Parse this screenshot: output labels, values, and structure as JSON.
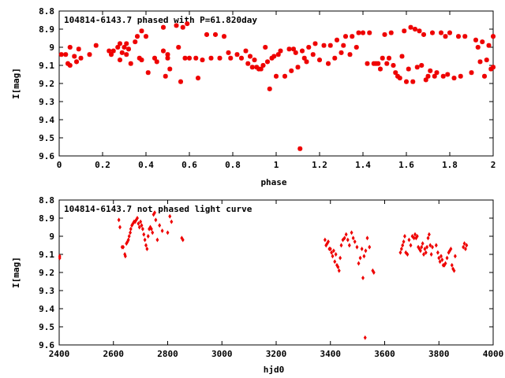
{
  "chart_data": [
    {
      "type": "scatter",
      "title": "104814-6143.7 phased with P=61.820day",
      "xlabel": "phase",
      "ylabel": "I[mag]",
      "xlim": [
        0,
        2
      ],
      "ylim": [
        9.6,
        8.8
      ],
      "y_inverted": true,
      "xticks": [
        "0",
        "0.2",
        "0.4",
        "0.6",
        "0.8",
        "1",
        "1.2",
        "1.4",
        "1.6",
        "1.8",
        "2"
      ],
      "yticks": [
        "8.8",
        "8.9",
        "9",
        "9.1",
        "9.2",
        "9.3",
        "9.4",
        "9.5",
        "9.6"
      ],
      "marker": "star",
      "color": "#ee0000",
      "points": [
        [
          0.01,
          9.04
        ],
        [
          0.03,
          9.04
        ],
        [
          0.04,
          9.09
        ],
        [
          0.05,
          9.1
        ],
        [
          0.05,
          9.0
        ],
        [
          0.07,
          9.05
        ],
        [
          0.08,
          9.08
        ],
        [
          0.09,
          9.01
        ],
        [
          0.1,
          9.06
        ],
        [
          0.14,
          9.04
        ],
        [
          0.17,
          8.99
        ],
        [
          0.23,
          9.02
        ],
        [
          0.24,
          9.04
        ],
        [
          0.25,
          9.02
        ],
        [
          0.27,
          9.0
        ],
        [
          0.28,
          8.98
        ],
        [
          0.28,
          9.07
        ],
        [
          0.29,
          9.03
        ],
        [
          0.3,
          9.0
        ],
        [
          0.31,
          9.04
        ],
        [
          0.31,
          8.98
        ],
        [
          0.32,
          9.01
        ],
        [
          0.33,
          9.09
        ],
        [
          0.35,
          8.97
        ],
        [
          0.36,
          8.94
        ],
        [
          0.37,
          9.06
        ],
        [
          0.38,
          8.91
        ],
        [
          0.38,
          9.07
        ],
        [
          0.4,
          8.94
        ],
        [
          0.41,
          9.14
        ],
        [
          0.44,
          9.06
        ],
        [
          0.45,
          9.08
        ],
        [
          0.48,
          9.02
        ],
        [
          0.48,
          8.89
        ],
        [
          0.49,
          9.16
        ],
        [
          0.5,
          9.04
        ],
        [
          0.5,
          9.06
        ],
        [
          0.51,
          9.12
        ],
        [
          0.54,
          8.88
        ],
        [
          0.55,
          9.0
        ],
        [
          0.56,
          9.19
        ],
        [
          0.57,
          8.89
        ],
        [
          0.58,
          9.06
        ],
        [
          0.59,
          8.87
        ],
        [
          0.6,
          9.06
        ],
        [
          0.63,
          9.06
        ],
        [
          0.64,
          9.17
        ],
        [
          0.66,
          9.07
        ],
        [
          0.68,
          8.93
        ],
        [
          0.7,
          9.06
        ],
        [
          0.72,
          8.93
        ],
        [
          0.74,
          9.06
        ],
        [
          0.76,
          8.94
        ],
        [
          0.78,
          9.03
        ],
        [
          0.79,
          9.06
        ],
        [
          0.82,
          9.04
        ],
        [
          0.84,
          9.06
        ],
        [
          0.86,
          9.02
        ],
        [
          0.87,
          9.09
        ],
        [
          0.88,
          9.05
        ],
        [
          0.89,
          9.11
        ],
        [
          0.9,
          9.07
        ],
        [
          0.91,
          9.11
        ],
        [
          0.92,
          9.12
        ],
        [
          0.93,
          9.12
        ],
        [
          0.94,
          9.1
        ],
        [
          0.95,
          9.0
        ],
        [
          0.96,
          9.08
        ],
        [
          0.97,
          9.23
        ],
        [
          0.98,
          9.06
        ],
        [
          0.99,
          9.05
        ],
        [
          1.0,
          9.16
        ],
        [
          1.01,
          9.04
        ],
        [
          1.02,
          9.02
        ],
        [
          1.04,
          9.16
        ],
        [
          1.06,
          9.01
        ],
        [
          1.07,
          9.13
        ],
        [
          1.08,
          9.01
        ],
        [
          1.09,
          9.03
        ],
        [
          1.1,
          9.11
        ],
        [
          1.11,
          9.56
        ],
        [
          1.12,
          9.02
        ],
        [
          1.13,
          9.06
        ],
        [
          1.14,
          9.08
        ],
        [
          1.15,
          9.0
        ],
        [
          1.17,
          9.04
        ],
        [
          1.18,
          8.98
        ],
        [
          1.2,
          9.07
        ],
        [
          1.22,
          8.99
        ],
        [
          1.24,
          9.09
        ],
        [
          1.25,
          8.99
        ],
        [
          1.27,
          9.06
        ],
        [
          1.28,
          8.96
        ],
        [
          1.3,
          9.03
        ],
        [
          1.31,
          8.99
        ],
        [
          1.32,
          8.94
        ],
        [
          1.34,
          9.04
        ],
        [
          1.35,
          8.94
        ],
        [
          1.37,
          9.0
        ],
        [
          1.38,
          8.92
        ],
        [
          1.4,
          8.92
        ],
        [
          1.42,
          9.09
        ],
        [
          1.43,
          8.92
        ],
        [
          1.45,
          9.09
        ],
        [
          1.46,
          9.09
        ],
        [
          1.47,
          9.09
        ],
        [
          1.48,
          9.12
        ],
        [
          1.49,
          9.06
        ],
        [
          1.5,
          8.93
        ],
        [
          1.51,
          9.09
        ],
        [
          1.52,
          9.06
        ],
        [
          1.53,
          8.92
        ],
        [
          1.54,
          9.1
        ],
        [
          1.55,
          9.14
        ],
        [
          1.56,
          9.16
        ],
        [
          1.57,
          9.17
        ],
        [
          1.58,
          9.05
        ],
        [
          1.59,
          8.91
        ],
        [
          1.6,
          9.19
        ],
        [
          1.61,
          9.12
        ],
        [
          1.62,
          8.89
        ],
        [
          1.63,
          9.19
        ],
        [
          1.64,
          8.9
        ],
        [
          1.65,
          9.11
        ],
        [
          1.66,
          8.91
        ],
        [
          1.67,
          9.1
        ],
        [
          1.68,
          8.93
        ],
        [
          1.69,
          9.18
        ],
        [
          1.7,
          9.16
        ],
        [
          1.71,
          9.13
        ],
        [
          1.72,
          8.92
        ],
        [
          1.73,
          9.16
        ],
        [
          1.74,
          9.14
        ],
        [
          1.76,
          8.92
        ],
        [
          1.77,
          9.16
        ],
        [
          1.78,
          8.94
        ],
        [
          1.79,
          9.15
        ],
        [
          1.8,
          8.92
        ],
        [
          1.82,
          9.17
        ],
        [
          1.84,
          8.94
        ],
        [
          1.85,
          9.16
        ],
        [
          1.87,
          8.94
        ],
        [
          1.9,
          9.14
        ],
        [
          1.92,
          8.96
        ],
        [
          1.93,
          9.0
        ],
        [
          1.94,
          9.08
        ],
        [
          1.95,
          8.97
        ],
        [
          1.96,
          9.16
        ],
        [
          1.97,
          9.07
        ],
        [
          1.98,
          8.99
        ],
        [
          1.99,
          9.12
        ],
        [
          2.0,
          8.94
        ],
        [
          2.0,
          9.11
        ]
      ]
    },
    {
      "type": "scatter",
      "title": "104814-6143.7 not phased light curve",
      "xlabel": "hjd0",
      "ylabel": "I[mag]",
      "xlim": [
        2400,
        4000
      ],
      "ylim": [
        9.6,
        8.8
      ],
      "y_inverted": true,
      "xticks": [
        "2400",
        "2600",
        "2800",
        "3000",
        "3200",
        "3400",
        "3600",
        "3800",
        "4000"
      ],
      "yticks": [
        "8.8",
        "8.9",
        "9",
        "9.1",
        "9.2",
        "9.3",
        "9.4",
        "9.5",
        "9.6"
      ],
      "marker": "diamond",
      "color": "#ee0000",
      "points": [
        [
          2402,
          9.11
        ],
        [
          2402,
          9.12
        ],
        [
          2620,
          8.91
        ],
        [
          2624,
          8.95
        ],
        [
          2632,
          9.06
        ],
        [
          2636,
          9.06
        ],
        [
          2642,
          9.1
        ],
        [
          2644,
          9.11
        ],
        [
          2648,
          9.04
        ],
        [
          2652,
          9.03
        ],
        [
          2655,
          9.02
        ],
        [
          2658,
          9.0
        ],
        [
          2662,
          8.98
        ],
        [
          2664,
          8.96
        ],
        [
          2668,
          8.94
        ],
        [
          2672,
          8.93
        ],
        [
          2676,
          8.92
        ],
        [
          2680,
          8.92
        ],
        [
          2684,
          8.91
        ],
        [
          2688,
          8.9
        ],
        [
          2692,
          8.93
        ],
        [
          2696,
          8.95
        ],
        [
          2700,
          8.92
        ],
        [
          2704,
          8.94
        ],
        [
          2708,
          8.96
        ],
        [
          2712,
          8.99
        ],
        [
          2716,
          9.02
        ],
        [
          2720,
          9.05
        ],
        [
          2724,
          9.07
        ],
        [
          2728,
          9.0
        ],
        [
          2732,
          8.96
        ],
        [
          2736,
          8.95
        ],
        [
          2740,
          8.96
        ],
        [
          2744,
          8.98
        ],
        [
          2748,
          8.88
        ],
        [
          2752,
          8.87
        ],
        [
          2756,
          8.91
        ],
        [
          2762,
          9.02
        ],
        [
          2770,
          8.94
        ],
        [
          2780,
          8.97
        ],
        [
          2800,
          8.98
        ],
        [
          2808,
          8.89
        ],
        [
          2814,
          8.92
        ],
        [
          2852,
          9.01
        ],
        [
          2856,
          9.02
        ],
        [
          3380,
          9.02
        ],
        [
          3384,
          9.05
        ],
        [
          3388,
          9.04
        ],
        [
          3392,
          9.03
        ],
        [
          3396,
          9.07
        ],
        [
          3400,
          9.07
        ],
        [
          3404,
          9.09
        ],
        [
          3408,
          9.11
        ],
        [
          3412,
          9.08
        ],
        [
          3416,
          9.14
        ],
        [
          3420,
          9.1
        ],
        [
          3424,
          9.16
        ],
        [
          3428,
          9.17
        ],
        [
          3432,
          9.19
        ],
        [
          3436,
          9.12
        ],
        [
          3440,
          9.05
        ],
        [
          3446,
          9.02
        ],
        [
          3452,
          9.01
        ],
        [
          3458,
          8.99
        ],
        [
          3464,
          9.02
        ],
        [
          3470,
          9.05
        ],
        [
          3478,
          8.98
        ],
        [
          3484,
          9.01
        ],
        [
          3490,
          9.03
        ],
        [
          3498,
          9.06
        ],
        [
          3504,
          9.15
        ],
        [
          3510,
          9.12
        ],
        [
          3516,
          9.07
        ],
        [
          3520,
          9.23
        ],
        [
          3524,
          9.11
        ],
        [
          3528,
          9.56
        ],
        [
          3530,
          9.08
        ],
        [
          3536,
          9.01
        ],
        [
          3544,
          9.06
        ],
        [
          3556,
          9.19
        ],
        [
          3560,
          9.2
        ],
        [
          3658,
          9.09
        ],
        [
          3662,
          9.07
        ],
        [
          3666,
          9.05
        ],
        [
          3670,
          9.03
        ],
        [
          3674,
          9.0
        ],
        [
          3678,
          9.09
        ],
        [
          3684,
          9.1
        ],
        [
          3690,
          9.02
        ],
        [
          3696,
          9.05
        ],
        [
          3702,
          9.0
        ],
        [
          3708,
          9.01
        ],
        [
          3712,
          8.99
        ],
        [
          3716,
          9.01
        ],
        [
          3720,
          9.0
        ],
        [
          3724,
          9.06
        ],
        [
          3728,
          9.07
        ],
        [
          3732,
          9.08
        ],
        [
          3736,
          9.06
        ],
        [
          3740,
          9.04
        ],
        [
          3744,
          9.1
        ],
        [
          3748,
          9.07
        ],
        [
          3752,
          9.09
        ],
        [
          3756,
          9.06
        ],
        [
          3760,
          9.01
        ],
        [
          3764,
          8.99
        ],
        [
          3768,
          9.05
        ],
        [
          3772,
          9.1
        ],
        [
          3776,
          9.06
        ],
        [
          3790,
          9.05
        ],
        [
          3796,
          9.09
        ],
        [
          3800,
          9.12
        ],
        [
          3804,
          9.14
        ],
        [
          3808,
          9.11
        ],
        [
          3812,
          9.13
        ],
        [
          3816,
          9.16
        ],
        [
          3820,
          9.16
        ],
        [
          3824,
          9.15
        ],
        [
          3830,
          9.12
        ],
        [
          3836,
          9.09
        ],
        [
          3840,
          9.08
        ],
        [
          3844,
          9.07
        ],
        [
          3848,
          9.16
        ],
        [
          3852,
          9.18
        ],
        [
          3856,
          9.19
        ],
        [
          3860,
          9.11
        ],
        [
          3890,
          9.06
        ],
        [
          3894,
          9.04
        ],
        [
          3898,
          9.07
        ],
        [
          3902,
          9.05
        ]
      ]
    }
  ]
}
